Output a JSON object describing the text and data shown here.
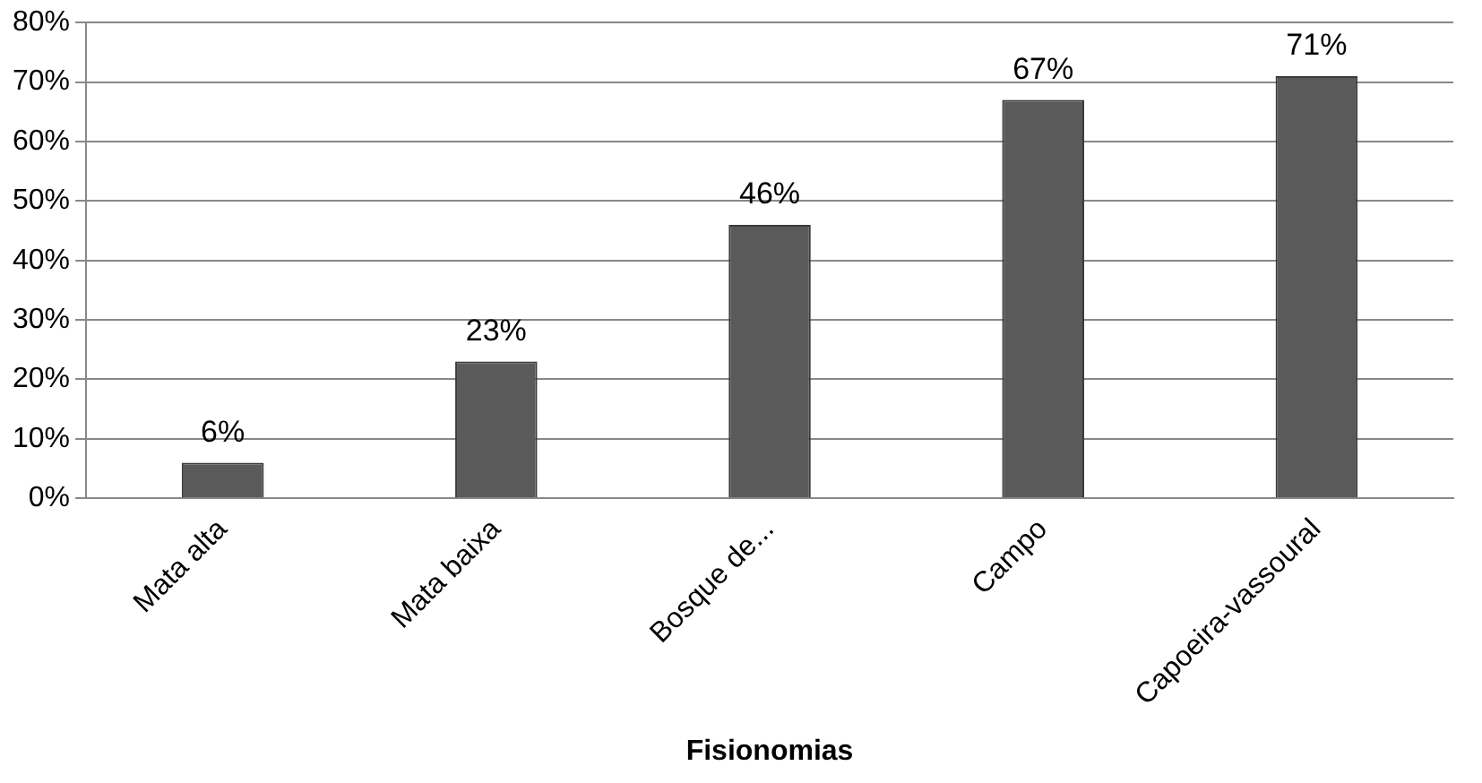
{
  "chart_data": {
    "type": "bar",
    "xlabel": "Fisionomias",
    "categories": [
      "Mata alta",
      "Mata baixa",
      "Bosque de...",
      "Campo",
      "Capoeira-vassoural"
    ],
    "values": [
      6,
      23,
      46,
      67,
      71
    ],
    "color": "#5a5a5a",
    "value_labels": [
      "6%",
      "23%",
      "46%",
      "67%",
      "71%"
    ],
    "ylim": [
      0,
      80
    ],
    "yticks": [
      {
        "value": 0,
        "label": "0%"
      },
      {
        "value": 10,
        "label": "10%"
      },
      {
        "value": 20,
        "label": "20%"
      },
      {
        "value": 30,
        "label": "30%"
      },
      {
        "value": 40,
        "label": "40%"
      },
      {
        "value": 50,
        "label": "50%"
      },
      {
        "value": 60,
        "label": "60%"
      },
      {
        "value": 70,
        "label": "70%"
      },
      {
        "value": 80,
        "label": "80%"
      }
    ],
    "grid": "y",
    "legend": false
  }
}
